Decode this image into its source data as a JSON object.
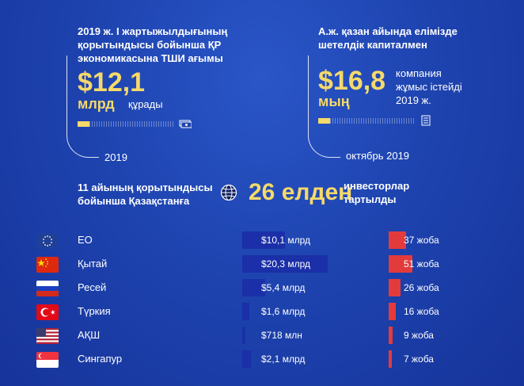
{
  "top_left": {
    "heading": [
      "2019 ж. І жартыжылдығының",
      "қорытындысы бойынша ҚР",
      "экономикасына ТШИ ағымы"
    ],
    "value": "$12,1",
    "unit": "млрд",
    "suffix": "құрады",
    "progress": 0.12,
    "caption": "2019"
  },
  "top_right": {
    "heading": [
      "А.ж. қазан айында елімізде",
      "шетелдік капиталмен"
    ],
    "value": "$16,8",
    "unit": "мың",
    "suffix": [
      "компания",
      "жұмыс істейді",
      "2019 ж."
    ],
    "progress": 0.12,
    "caption": "октябрь 2019"
  },
  "middle": {
    "left": [
      "11 айының қорытындысы",
      "бойынша Қазақстанға"
    ],
    "big": "26 елден",
    "right": [
      "инвесторлар",
      "тартылды"
    ]
  },
  "colors": {
    "gold": "#f5d96a",
    "bar_blue": "#1a2fa8",
    "bar_red": "#e33b3b"
  },
  "chart_data": {
    "type": "bar",
    "categories": [
      "ЕО",
      "Қытай",
      "Ресей",
      "Түркия",
      "АҚШ",
      "Сингапур"
    ],
    "series": [
      {
        "values_usd_bn": [
          10.1,
          20.3,
          5.4,
          1.6,
          0.718,
          2.1
        ],
        "labels": [
          "$10,1 млрд",
          "$20,3 млрд",
          "$5,4 млрд",
          "$1,6 млрд",
          "$718 млн",
          "$2,1 млрд"
        ]
      },
      {
        "values": [
          37,
          51,
          26,
          16,
          9,
          7
        ],
        "labels": [
          "37 жоба",
          "51 жоба",
          "26 жоба",
          "16 жоба",
          "9 жоба",
          "7 жоба"
        ]
      }
    ]
  },
  "flags": [
    "eu-flag-icon",
    "china-flag-icon",
    "russia-flag-icon",
    "turkey-flag-icon",
    "usa-flag-icon",
    "singapore-flag-icon"
  ]
}
